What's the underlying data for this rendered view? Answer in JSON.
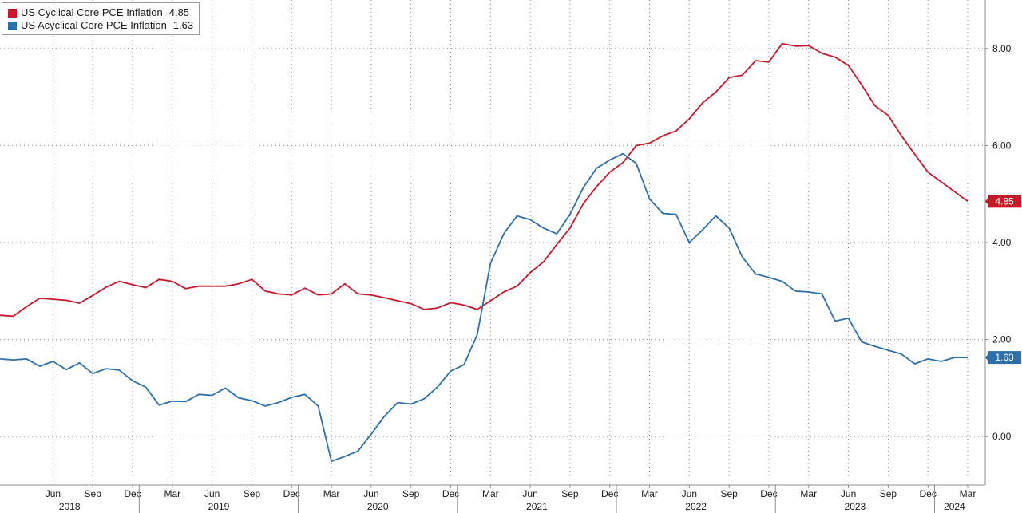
{
  "chart_data": {
    "type": "line",
    "title": "",
    "xlabel": "",
    "ylabel": "",
    "ylim": [
      -1.0,
      9.0
    ],
    "yticks": [
      0.0,
      2.0,
      4.0,
      6.0,
      8.0
    ],
    "ytick_labels": [
      "0.00",
      "2.00",
      "4.00",
      "6.00",
      "8.00"
    ],
    "grid": true,
    "legend_position": "top-left",
    "x_start": "2018-02",
    "x_end": "2024-03",
    "month_ticks": [
      {
        "label": "Jun",
        "date": "2018-06"
      },
      {
        "label": "Sep",
        "date": "2018-09"
      },
      {
        "label": "Dec",
        "date": "2018-12"
      },
      {
        "label": "Mar",
        "date": "2019-03"
      },
      {
        "label": "Jun",
        "date": "2019-06"
      },
      {
        "label": "Sep",
        "date": "2019-09"
      },
      {
        "label": "Dec",
        "date": "2019-12"
      },
      {
        "label": "Mar",
        "date": "2020-03"
      },
      {
        "label": "Jun",
        "date": "2020-06"
      },
      {
        "label": "Sep",
        "date": "2020-09"
      },
      {
        "label": "Dec",
        "date": "2020-12"
      },
      {
        "label": "Mar",
        "date": "2021-03"
      },
      {
        "label": "Jun",
        "date": "2021-06"
      },
      {
        "label": "Sep",
        "date": "2021-09"
      },
      {
        "label": "Dec",
        "date": "2021-12"
      },
      {
        "label": "Mar",
        "date": "2022-03"
      },
      {
        "label": "Jun",
        "date": "2022-06"
      },
      {
        "label": "Sep",
        "date": "2022-09"
      },
      {
        "label": "Dec",
        "date": "2022-12"
      },
      {
        "label": "Mar",
        "date": "2023-03"
      },
      {
        "label": "Jun",
        "date": "2023-06"
      },
      {
        "label": "Sep",
        "date": "2023-09"
      },
      {
        "label": "Dec",
        "date": "2023-12"
      },
      {
        "label": "Mar",
        "date": "2024-03"
      }
    ],
    "year_labels": [
      {
        "label": "2018",
        "start": "2018-01",
        "end": "2018-12"
      },
      {
        "label": "2019",
        "start": "2019-01",
        "end": "2019-12"
      },
      {
        "label": "2020",
        "start": "2020-01",
        "end": "2020-12"
      },
      {
        "label": "2021",
        "start": "2021-01",
        "end": "2021-12"
      },
      {
        "label": "2022",
        "start": "2022-01",
        "end": "2022-12"
      },
      {
        "label": "2023",
        "start": "2023-01",
        "end": "2023-12"
      },
      {
        "label": "2024",
        "start": "2024-01",
        "end": "2024-03"
      }
    ],
    "series": [
      {
        "name": "US Cyclical Core PCE Inflation",
        "last_value": "4.85",
        "color": "#c8182c",
        "dates": [
          "2018-02",
          "2018-03",
          "2018-04",
          "2018-05",
          "2018-06",
          "2018-07",
          "2018-08",
          "2018-09",
          "2018-10",
          "2018-11",
          "2018-12",
          "2019-01",
          "2019-02",
          "2019-03",
          "2019-04",
          "2019-05",
          "2019-06",
          "2019-07",
          "2019-08",
          "2019-09",
          "2019-10",
          "2019-11",
          "2019-12",
          "2020-01",
          "2020-02",
          "2020-03",
          "2020-04",
          "2020-05",
          "2020-06",
          "2020-07",
          "2020-08",
          "2020-09",
          "2020-10",
          "2020-11",
          "2020-12",
          "2021-01",
          "2021-02",
          "2021-03",
          "2021-04",
          "2021-05",
          "2021-06",
          "2021-07",
          "2021-08",
          "2021-09",
          "2021-10",
          "2021-11",
          "2021-12",
          "2022-01",
          "2022-02",
          "2022-03",
          "2022-04",
          "2022-05",
          "2022-06",
          "2022-07",
          "2022-08",
          "2022-09",
          "2022-10",
          "2022-11",
          "2022-12",
          "2023-01",
          "2023-02",
          "2023-03",
          "2023-04",
          "2023-05",
          "2023-06",
          "2023-07",
          "2023-08",
          "2023-09",
          "2023-10",
          "2023-11",
          "2023-12",
          "2024-01",
          "2024-02",
          "2024-03"
        ],
        "values": [
          2.5,
          2.48,
          2.68,
          2.85,
          2.83,
          2.81,
          2.75,
          2.91,
          3.08,
          3.2,
          3.13,
          3.07,
          3.24,
          3.2,
          3.05,
          3.1,
          3.1,
          3.1,
          3.15,
          3.24,
          3.0,
          2.94,
          2.92,
          3.06,
          2.92,
          2.94,
          3.15,
          2.94,
          2.92,
          2.86,
          2.8,
          2.74,
          2.62,
          2.65,
          2.76,
          2.71,
          2.62,
          2.8,
          2.98,
          3.1,
          3.38,
          3.6,
          3.96,
          4.3,
          4.8,
          5.15,
          5.45,
          5.65,
          6.0,
          6.05,
          6.2,
          6.3,
          6.55,
          6.88,
          7.1,
          7.4,
          7.45,
          7.75,
          7.72,
          8.1,
          8.05,
          8.06,
          7.9,
          7.82,
          7.65,
          7.25,
          6.82,
          6.62,
          6.2,
          5.82,
          5.45,
          5.25,
          5.05,
          4.85
        ]
      },
      {
        "name": "US Acyclical Core PCE Inflation",
        "last_value": "1.63",
        "color": "#2e6fa8",
        "dates": [
          "2018-02",
          "2018-03",
          "2018-04",
          "2018-05",
          "2018-06",
          "2018-07",
          "2018-08",
          "2018-09",
          "2018-10",
          "2018-11",
          "2018-12",
          "2019-01",
          "2019-02",
          "2019-03",
          "2019-04",
          "2019-05",
          "2019-06",
          "2019-07",
          "2019-08",
          "2019-09",
          "2019-10",
          "2019-11",
          "2019-12",
          "2020-01",
          "2020-02",
          "2020-03",
          "2020-04",
          "2020-05",
          "2020-06",
          "2020-07",
          "2020-08",
          "2020-09",
          "2020-10",
          "2020-11",
          "2020-12",
          "2021-01",
          "2021-02",
          "2021-03",
          "2021-04",
          "2021-05",
          "2021-06",
          "2021-07",
          "2021-08",
          "2021-09",
          "2021-10",
          "2021-11",
          "2021-12",
          "2022-01",
          "2022-02",
          "2022-03",
          "2022-04",
          "2022-05",
          "2022-06",
          "2022-07",
          "2022-08",
          "2022-09",
          "2022-10",
          "2022-11",
          "2022-12",
          "2023-01",
          "2023-02",
          "2023-03",
          "2023-04",
          "2023-05",
          "2023-06",
          "2023-07",
          "2023-08",
          "2023-09",
          "2023-10",
          "2023-11",
          "2023-12",
          "2024-01",
          "2024-02",
          "2024-03"
        ],
        "values": [
          1.6,
          1.58,
          1.6,
          1.45,
          1.55,
          1.38,
          1.52,
          1.3,
          1.4,
          1.37,
          1.15,
          1.02,
          0.65,
          0.73,
          0.72,
          0.87,
          0.85,
          1.0,
          0.8,
          0.74,
          0.63,
          0.7,
          0.81,
          0.87,
          0.63,
          -0.51,
          -0.41,
          -0.3,
          0.05,
          0.42,
          0.7,
          0.67,
          0.78,
          1.02,
          1.35,
          1.48,
          2.1,
          3.57,
          4.18,
          4.55,
          4.47,
          4.3,
          4.18,
          4.58,
          5.13,
          5.53,
          5.7,
          5.83,
          5.63,
          4.9,
          4.6,
          4.58,
          4.0,
          4.26,
          4.55,
          4.3,
          3.7,
          3.35,
          3.28,
          3.2,
          3.0,
          2.98,
          2.94,
          2.38,
          2.44,
          1.95,
          1.86,
          1.78,
          1.7,
          1.5,
          1.6,
          1.55,
          1.63,
          1.63
        ]
      }
    ]
  }
}
